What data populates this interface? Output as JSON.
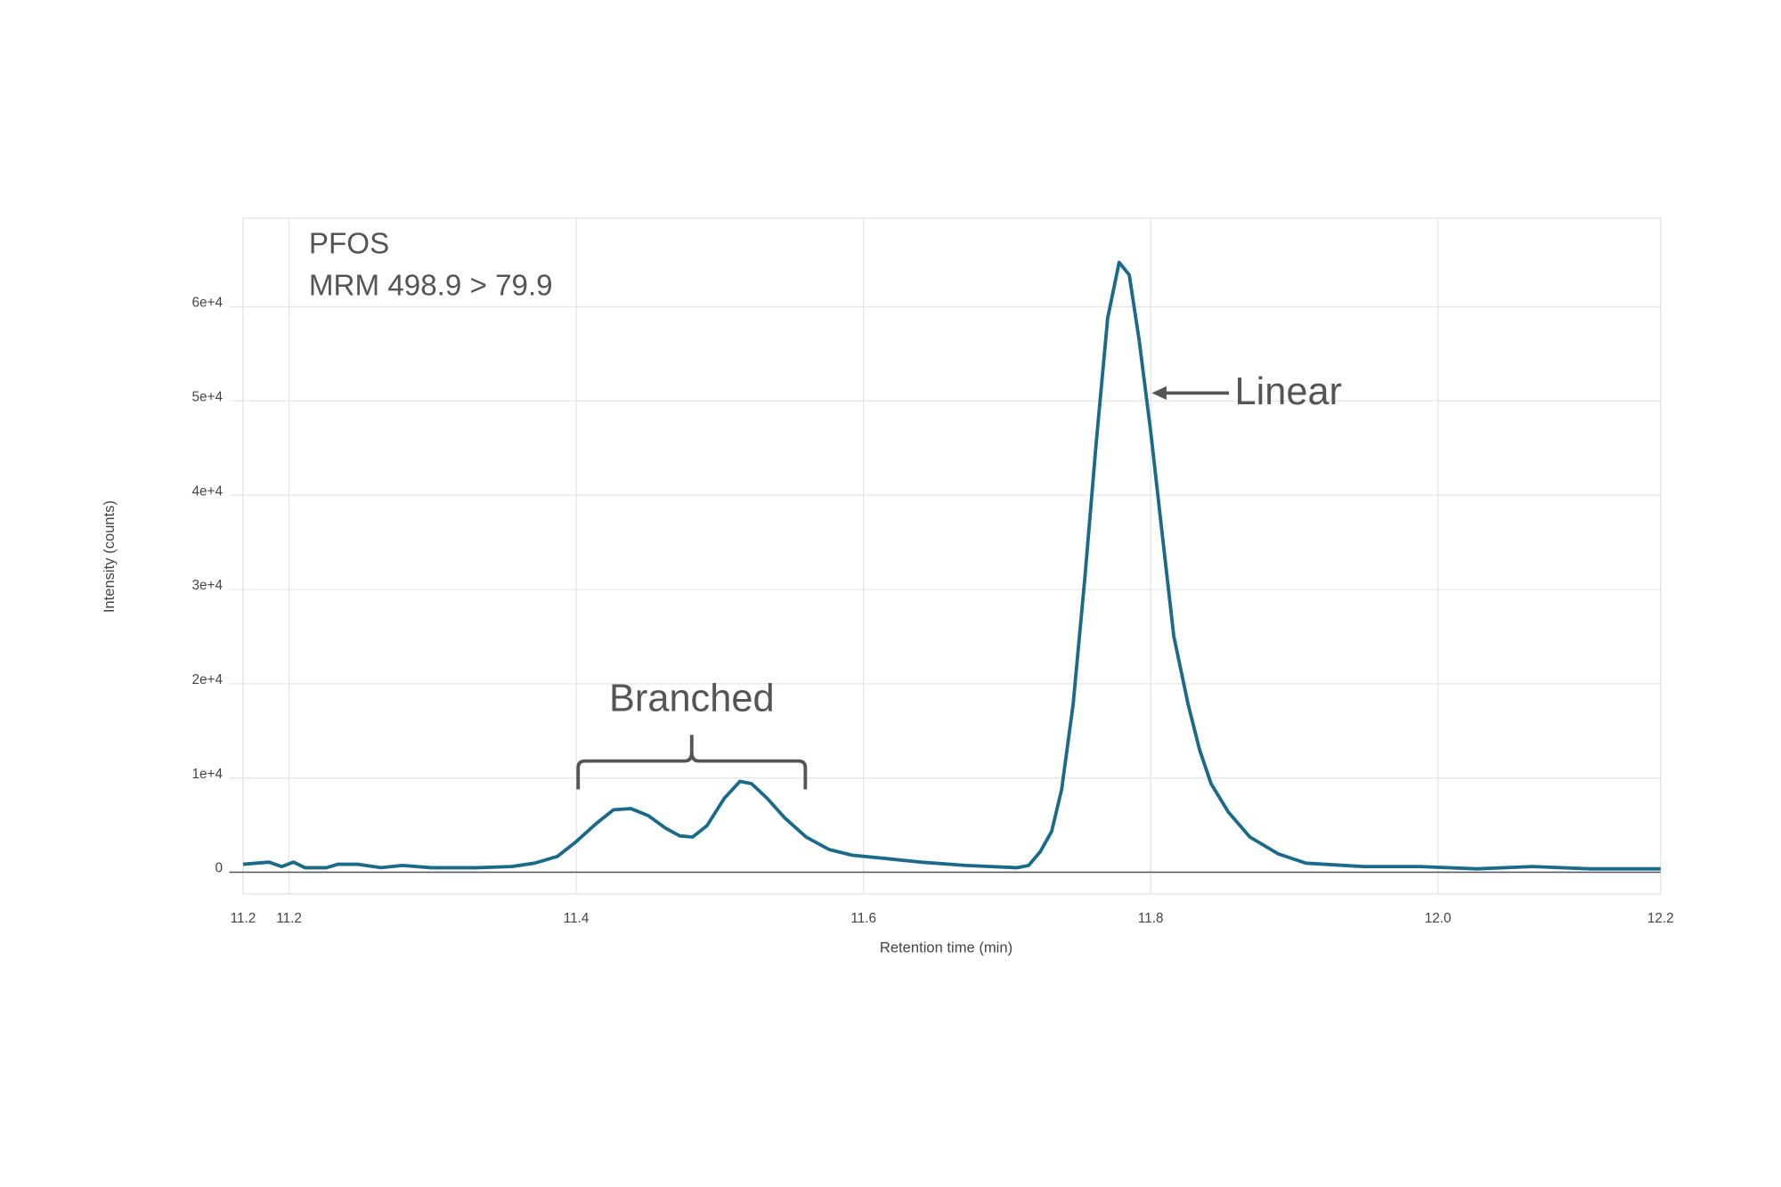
{
  "chart_data": {
    "type": "line",
    "xlabel": "Retention time (min)",
    "ylabel": "Intensity (counts)",
    "annotations": [
      "PFOS",
      "MRM 498.9 > 79.9",
      "Branched",
      "Linear"
    ],
    "color": "#1a6a8a",
    "grid": true,
    "xlim": [
      11.168,
      12.155
    ],
    "ylim": [
      -2300,
      69400
    ],
    "xticks": [
      {
        "value": 11.168,
        "label": "11.2"
      },
      11.2,
      11.4,
      11.6,
      11.8,
      {
        "value": 12,
        "label": "12.0"
      },
      {
        "value": 12.155,
        "label": "12.2"
      }
    ],
    "yticks": [
      0,
      {
        "value": 10000,
        "label": "1e+4"
      },
      {
        "value": 20000,
        "label": "2e+4"
      },
      {
        "value": 30000,
        "label": "3e+4"
      },
      {
        "value": 40000,
        "label": "4e+4"
      },
      {
        "value": 50000,
        "label": "5e+4"
      },
      {
        "value": 60000,
        "label": "6e+4"
      }
    ],
    "x": [
      11.168,
      11.186,
      11.195,
      11.203,
      11.211,
      11.226,
      11.234,
      11.248,
      11.264,
      11.279,
      11.299,
      11.331,
      11.355,
      11.371,
      11.387,
      11.4,
      11.414,
      11.426,
      11.438,
      11.45,
      11.462,
      11.472,
      11.481,
      11.491,
      11.503,
      11.514,
      11.522,
      11.533,
      11.545,
      11.56,
      11.576,
      11.592,
      11.616,
      11.64,
      11.671,
      11.707,
      11.715,
      11.723,
      11.731,
      11.738,
      11.746,
      11.754,
      11.762,
      11.77,
      11.778,
      11.785,
      11.792,
      11.8,
      11.808,
      11.816,
      11.826,
      11.834,
      11.842,
      11.854,
      11.869,
      11.889,
      11.908,
      11.948,
      11.987,
      12.027,
      12.066,
      12.106,
      12.155
    ],
    "values": [
      840,
      1080,
      600,
      1080,
      480,
      480,
      840,
      840,
      480,
      720,
      480,
      480,
      600,
      960,
      1690,
      3250,
      5180,
      6630,
      6750,
      6020,
      4700,
      3860,
      3740,
      4940,
      7830,
      9640,
      9400,
      7830,
      5780,
      3740,
      2410,
      1810,
      1450,
      1080,
      720,
      480,
      720,
      2170,
      4340,
      8800,
      17830,
      31080,
      45540,
      58800,
      64700,
      63370,
      56390,
      46750,
      35900,
      25060,
      17830,
      13010,
      9400,
      6390,
      3740,
      1930,
      960,
      600,
      600,
      360,
      600,
      360,
      360
    ]
  }
}
